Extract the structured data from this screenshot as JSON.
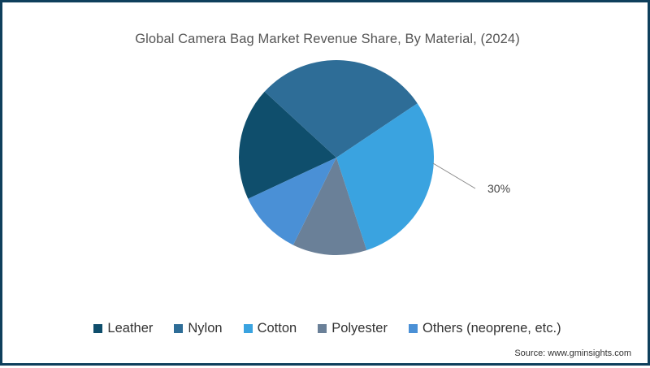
{
  "chart_data": {
    "type": "pie",
    "title": "Global Camera Bag Market Revenue Share, By Material, (2024)",
    "categories": [
      "Leather",
      "Nylon",
      "Cotton",
      "Polyester",
      "Others (neoprene, etc.)"
    ],
    "values": [
      19,
      29,
      30,
      12,
      10
    ],
    "colors": [
      "#0f4e6c",
      "#2e6d97",
      "#3aa3e0",
      "#6a8098",
      "#4a90d6"
    ],
    "start_angles_deg_clockwise_from_top": [
      245,
      312.6,
      56.2,
      161.9,
      206.3
    ],
    "annotations": [
      {
        "category": "Cotton",
        "text": "30%"
      }
    ],
    "legend_position": "bottom",
    "xlabel": "",
    "ylabel": ""
  },
  "title": "Global Camera Bag Market Revenue Share, By Material, (2024)",
  "legend": [
    {
      "label": "Leather",
      "color": "#0f4e6c"
    },
    {
      "label": "Nylon",
      "color": "#2e6d97"
    },
    {
      "label": "Cotton",
      "color": "#3aa3e0"
    },
    {
      "label": "Polyester",
      "color": "#6a8098"
    },
    {
      "label": "Others (neoprene, etc.)",
      "color": "#4a90d6"
    }
  ],
  "annotation_label": "30%",
  "source": "Source: www.gminsights.com"
}
